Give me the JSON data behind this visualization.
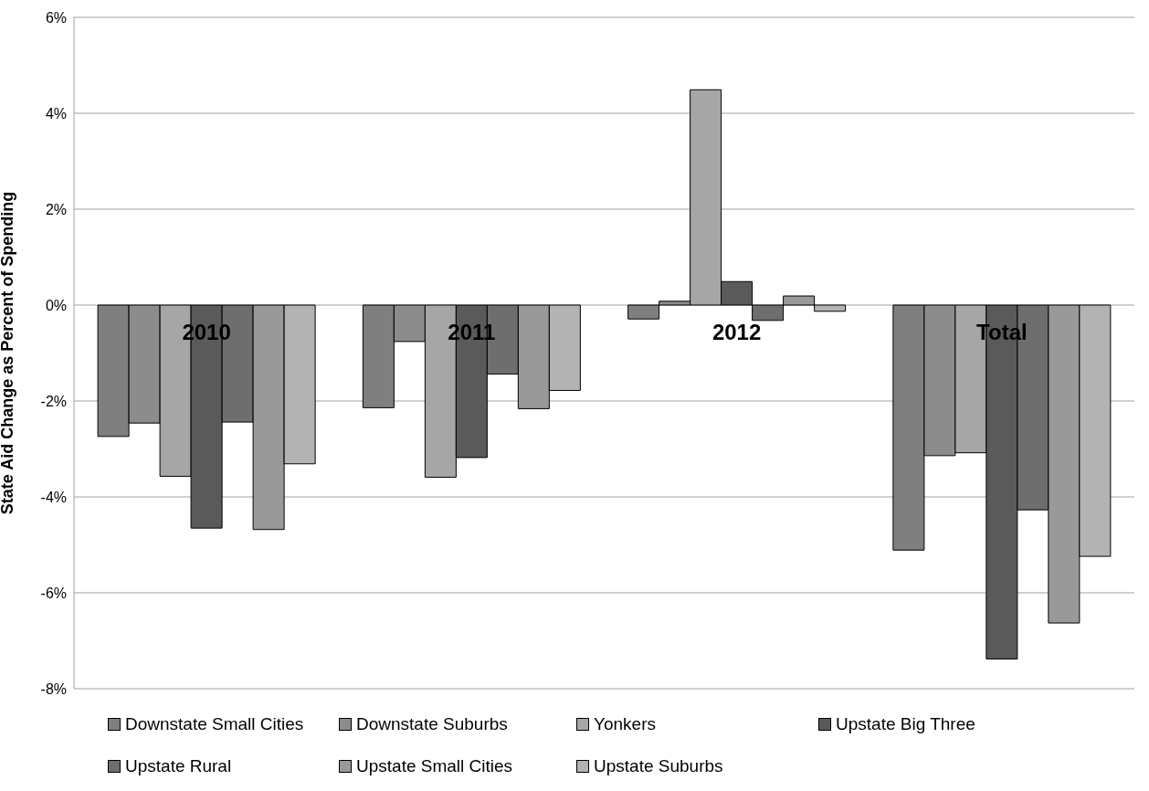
{
  "chart_data": {
    "type": "bar",
    "ylabel": "State Aid Change as Percent of Spending",
    "categories": [
      "2010",
      "2011",
      "2012",
      "Total"
    ],
    "series": [
      {
        "name": "Downstate Small Cities",
        "color": "#7f7f7f",
        "values": [
          -2.74,
          -2.14,
          -0.29,
          -5.11
        ]
      },
      {
        "name": "Downstate Suburbs",
        "color": "#8c8c8c",
        "values": [
          -2.46,
          -0.76,
          0.08,
          -3.14
        ]
      },
      {
        "name": "Yonkers",
        "color": "#a6a6a6",
        "values": [
          -3.57,
          -3.59,
          4.49,
          -3.08
        ]
      },
      {
        "name": "Upstate Big Three",
        "color": "#5a5a5a",
        "values": [
          -4.65,
          -3.18,
          0.49,
          -7.38
        ]
      },
      {
        "name": "Upstate Rural",
        "color": "#6e6e6e",
        "values": [
          -2.44,
          -1.44,
          -0.32,
          -4.27
        ]
      },
      {
        "name": "Upstate Small Cities",
        "color": "#999999",
        "values": [
          -4.68,
          -2.16,
          0.19,
          -6.63
        ]
      },
      {
        "name": "Upstate Suburbs",
        "color": "#b3b3b3",
        "values": [
          -3.31,
          -1.78,
          -0.13,
          -5.24
        ]
      }
    ],
    "ylim": [
      -8,
      6
    ],
    "yticks": [
      {
        "value": -8,
        "label": "-8%"
      },
      {
        "value": -6,
        "label": "-6%"
      },
      {
        "value": -4,
        "label": "-4%"
      },
      {
        "value": -2,
        "label": "-2%"
      },
      {
        "value": 0,
        "label": "0%"
      },
      {
        "value": 2,
        "label": "2%"
      },
      {
        "value": 4,
        "label": "4%"
      },
      {
        "value": 6,
        "label": "6%"
      }
    ],
    "grid": "y",
    "legend": "bottom"
  }
}
